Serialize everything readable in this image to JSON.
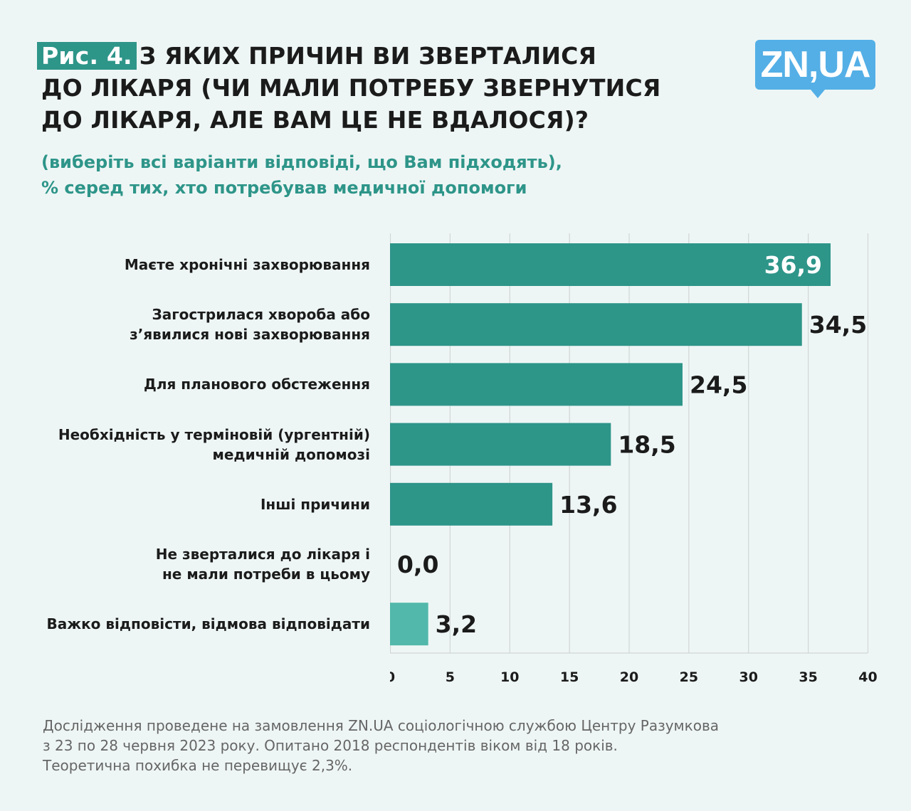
{
  "title": {
    "fig_label": "Рис. 4.",
    "lines": [
      "З ЯКИХ ПРИЧИН ВИ ЗВЕРТАЛИСЯ",
      "ДО ЛІКАРЯ (ЧИ МАЛИ ПОТРЕБУ ЗВЕРНУТИСЯ",
      "ДО ЛІКАРЯ, АЛЕ ВАМ ЦЕ НЕ ВДАЛОСЯ)?"
    ]
  },
  "subtitle": [
    "(виберіть всі варіанти відповіді, що Вам підходять),",
    "%  серед тих, хто потребував медичної допомоги"
  ],
  "logo": "ZN,UA",
  "chart_data": {
    "type": "bar",
    "orientation": "horizontal",
    "categories": [
      "Маєте хронічні захворювання",
      "Загострилася хвороба або з’явилися нові захворювання",
      "Для планового обстеження",
      "Необхідність у терміновій (ургентній) медичній допомозі",
      "Інші причини",
      "Не зверталися до лікаря і не мали потреби в цьому",
      "Важко відповісти, відмова відповідати"
    ],
    "category_lines": [
      [
        "Маєте хронічні захворювання"
      ],
      [
        "Загострилася хвороба або",
        "з’явилися нові захворювання"
      ],
      [
        "Для планового обстеження"
      ],
      [
        "Необхідність у терміновій (ургентній)",
        "медичній допомозі"
      ],
      [
        "Інші причини"
      ],
      [
        "Не зверталися до лікаря і",
        "не мали потреби в цьому"
      ],
      [
        "Важко відповісти, відмова відповідати"
      ]
    ],
    "values": [
      36.9,
      34.5,
      24.5,
      18.5,
      13.6,
      0.0,
      3.2
    ],
    "value_labels": [
      "36,9",
      "34,5",
      "24,5",
      "18,5",
      "13,6",
      "0,0",
      "3,2"
    ],
    "colors": [
      "#2e9589",
      "#2e9589",
      "#2e9589",
      "#2e9589",
      "#2e9589",
      "#2e9589",
      "#52b8ab"
    ],
    "xlim": [
      0,
      40
    ],
    "xticks": [
      "0",
      "5",
      "10",
      "15",
      "20",
      "25",
      "30",
      "35",
      "40"
    ],
    "grid": true
  },
  "footer": [
    "Дослідження проведене на замовлення ZN.UA соціологічною службою Центру Разумкова",
    "з 23 по 28 червня 2023 року. Опитано 2018 респондентів віком від 18 років.",
    "Теоретична похибка не перевищує 2,3%."
  ]
}
